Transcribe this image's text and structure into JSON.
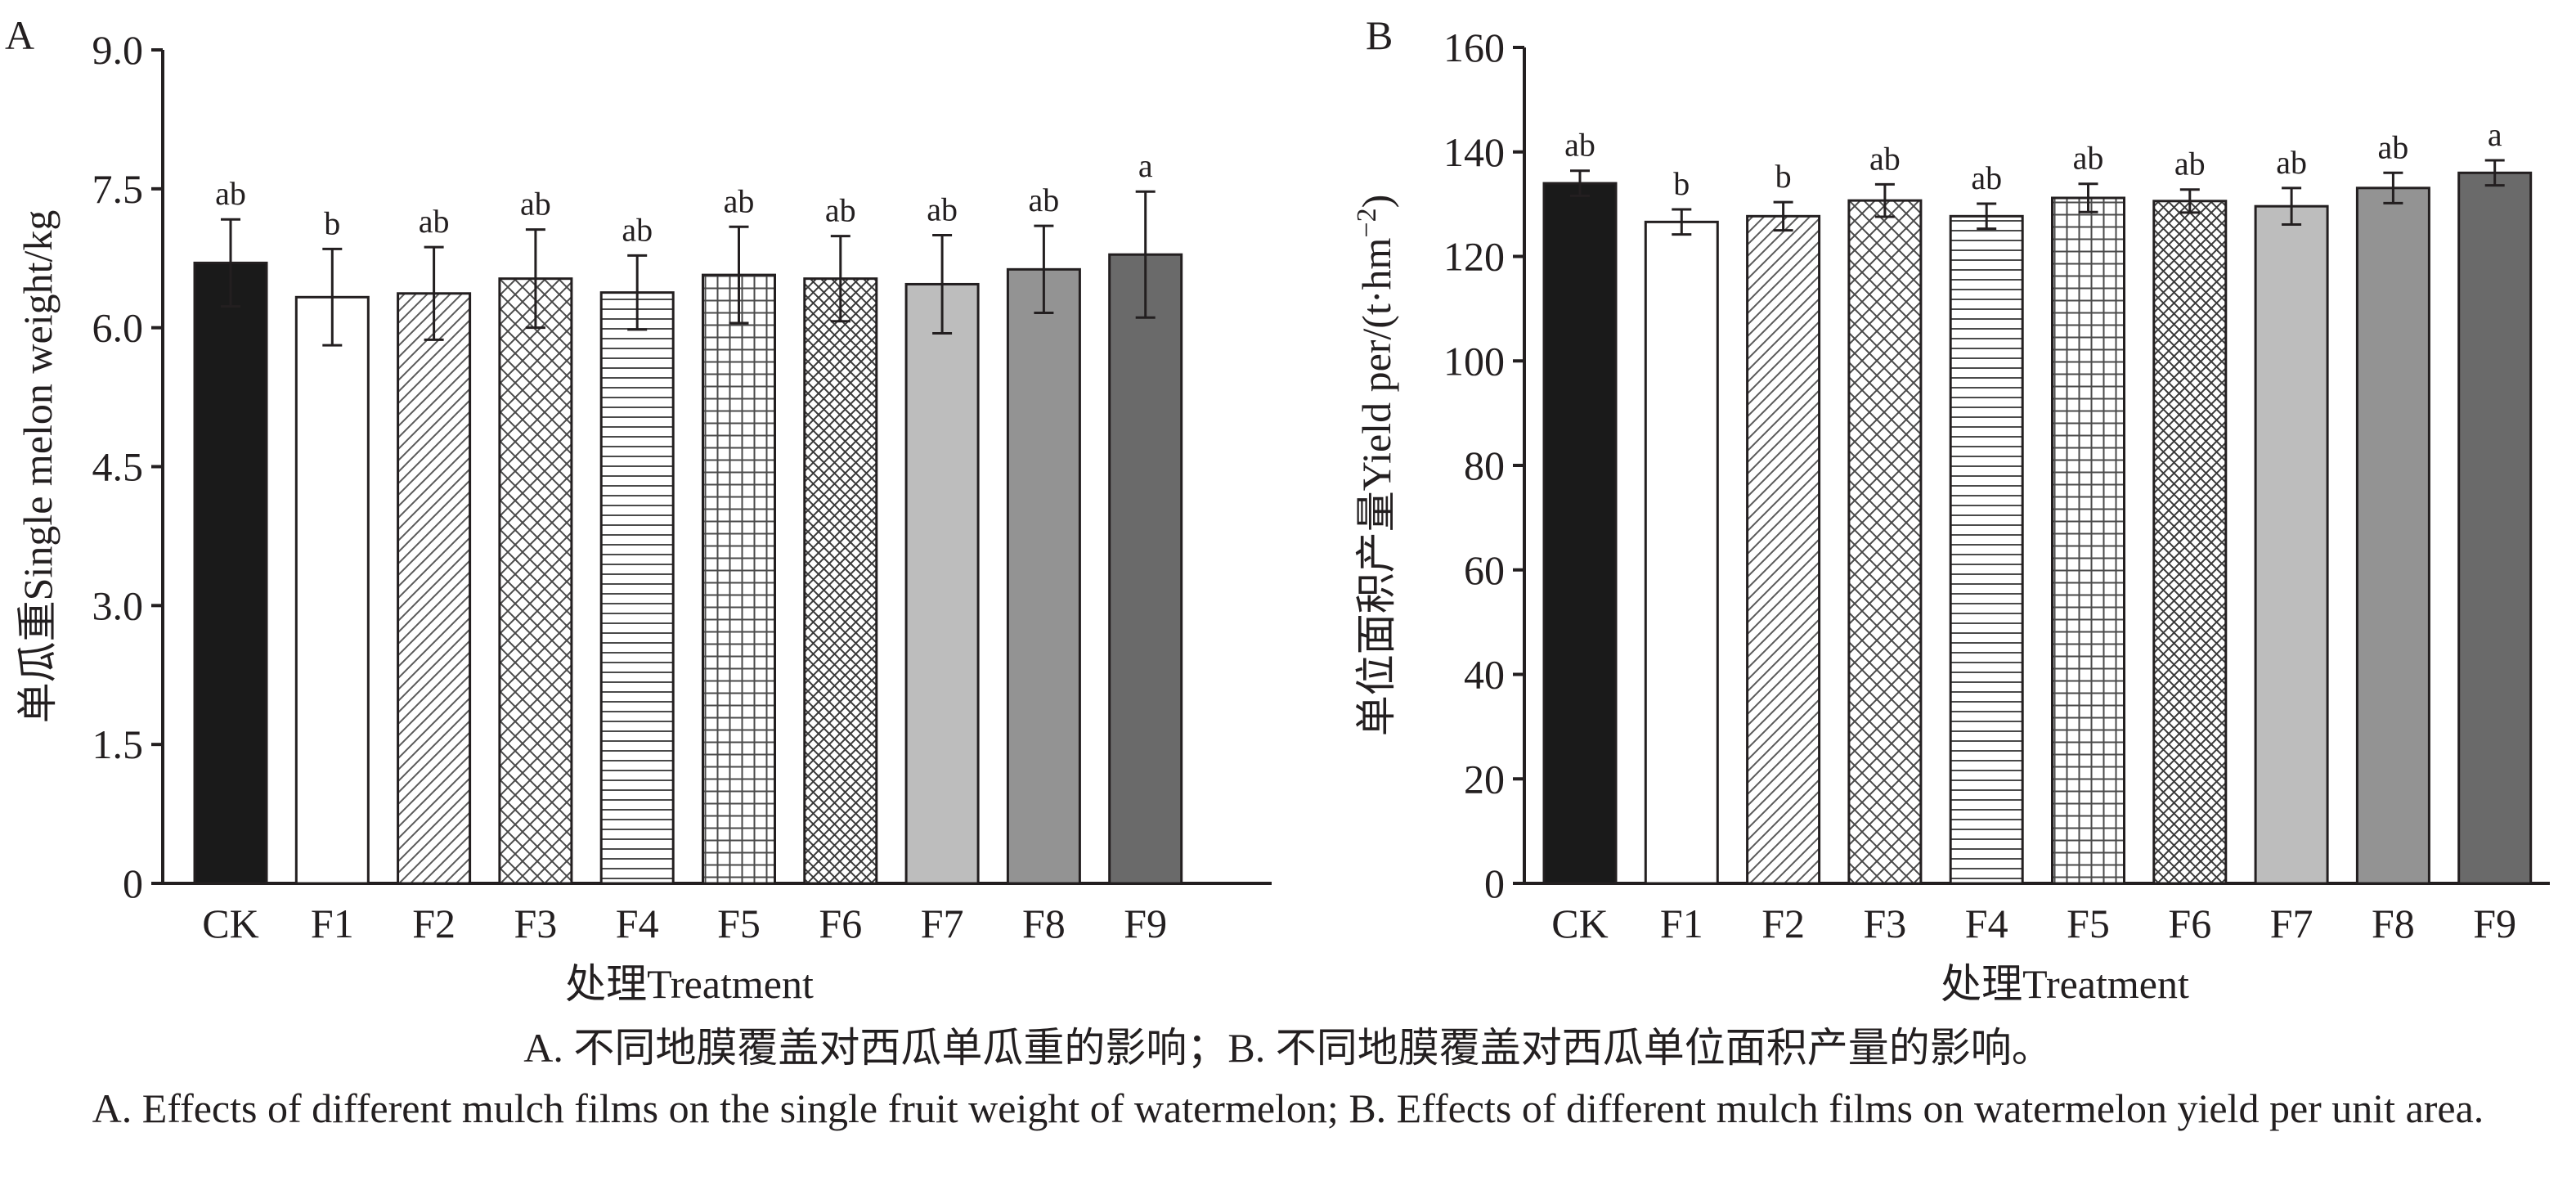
{
  "chart_data": [
    {
      "panel_label": "A",
      "type": "bar",
      "categories": [
        "CK",
        "F1",
        "F2",
        "F3",
        "F4",
        "F5",
        "F6",
        "F7",
        "F8",
        "F9"
      ],
      "values": [
        6.7,
        6.33,
        6.37,
        6.53,
        6.38,
        6.57,
        6.53,
        6.47,
        6.63,
        6.79
      ],
      "errors": [
        0.47,
        0.52,
        0.5,
        0.53,
        0.4,
        0.52,
        0.46,
        0.53,
        0.47,
        0.68
      ],
      "significance": [
        "ab",
        "b",
        "ab",
        "ab",
        "ab",
        "ab",
        "ab",
        "ab",
        "ab",
        "a"
      ],
      "fill": [
        "#1a1a1a",
        "#ffffff",
        "hatch-diag-down",
        "hatch-cross-diag",
        "hatch-horizontal",
        "hatch-grid",
        "hatch-cross-diag-dense",
        "#bdbdbd",
        "#939393",
        "#6a6a6a"
      ],
      "yticks": [
        "0",
        "1.5",
        "3.0",
        "4.5",
        "6.0",
        "7.5",
        "9.0"
      ],
      "ylim": [
        0,
        9
      ],
      "ylabel": "单瓜重Single melon weight/kg",
      "xlabel": "处理Treatment",
      "grid": false
    },
    {
      "panel_label": "B",
      "type": "bar",
      "categories": [
        "CK",
        "F1",
        "F2",
        "F3",
        "F4",
        "F5",
        "F6",
        "F7",
        "F8",
        "F9"
      ],
      "values": [
        134,
        126.6,
        127.7,
        130.7,
        127.7,
        131.2,
        130.6,
        129.6,
        133.1,
        136
      ],
      "errors": [
        2.4,
        2.4,
        2.7,
        3.1,
        2.4,
        2.7,
        2.2,
        3.5,
        2.9,
        2.4
      ],
      "significance": [
        "ab",
        "b",
        "b",
        "ab",
        "ab",
        "ab",
        "ab",
        "ab",
        "ab",
        "a"
      ],
      "fill": [
        "#1a1a1a",
        "#ffffff",
        "hatch-diag-down",
        "hatch-cross-diag",
        "hatch-horizontal",
        "hatch-grid",
        "hatch-cross-diag-dense",
        "#bdbdbd",
        "#939393",
        "#6a6a6a"
      ],
      "yticks": [
        "0",
        "20",
        "40",
        "60",
        "80",
        "100",
        "120",
        "140",
        "160"
      ],
      "ylim": [
        0,
        160
      ],
      "ylabel": "单位面积产量Yield per/(t·hm",
      "ylabel_sup": "−2",
      "ylabel_close": ")",
      "xlabel": "处理Treatment",
      "grid": false
    }
  ],
  "caption": {
    "zh": "A. 不同地膜覆盖对西瓜单瓜重的影响；B. 不同地膜覆盖对西瓜单位面积产量的影响。",
    "en": "A. Effects of different mulch films on the single fruit weight of watermelon; B. Effects of different mulch films on watermelon yield per unit area."
  }
}
